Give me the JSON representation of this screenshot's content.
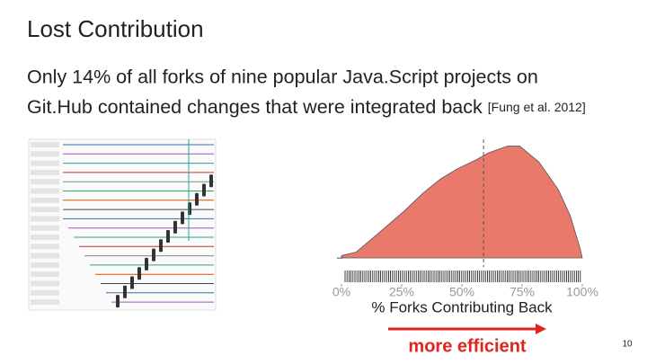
{
  "slide": {
    "title": "Lost Contribution",
    "body": [
      "Only 14% of all forks of nine popular Java.Script projects on",
      "Git.Hub contained changes that were integrated back"
    ],
    "citation": "[Fung et al. 2012]",
    "page_number": "10",
    "annotation": "more efficient"
  },
  "chart_data": {
    "type": "area",
    "xlabel": "% Forks Contributing Back",
    "x": [
      0,
      6,
      15,
      26,
      34,
      41,
      48,
      56,
      61,
      69,
      74,
      82,
      90,
      95,
      99,
      100
    ],
    "values": [
      0.02,
      0.05,
      0.21,
      0.41,
      0.57,
      0.69,
      0.78,
      0.86,
      0.92,
      0.98,
      0.98,
      0.84,
      0.6,
      0.37,
      0.09,
      0
    ],
    "color": "#e8796b",
    "xlim": [
      0,
      100
    ],
    "ylim": [
      0,
      1
    ],
    "xticks": [
      {
        "value": 0,
        "label": "0%"
      },
      {
        "value": 25,
        "label": "25%"
      },
      {
        "value": 50,
        "label": "50%"
      },
      {
        "value": 75,
        "label": "75%"
      },
      {
        "value": 100,
        "label": "100%"
      }
    ],
    "reference_line": 59
  }
}
